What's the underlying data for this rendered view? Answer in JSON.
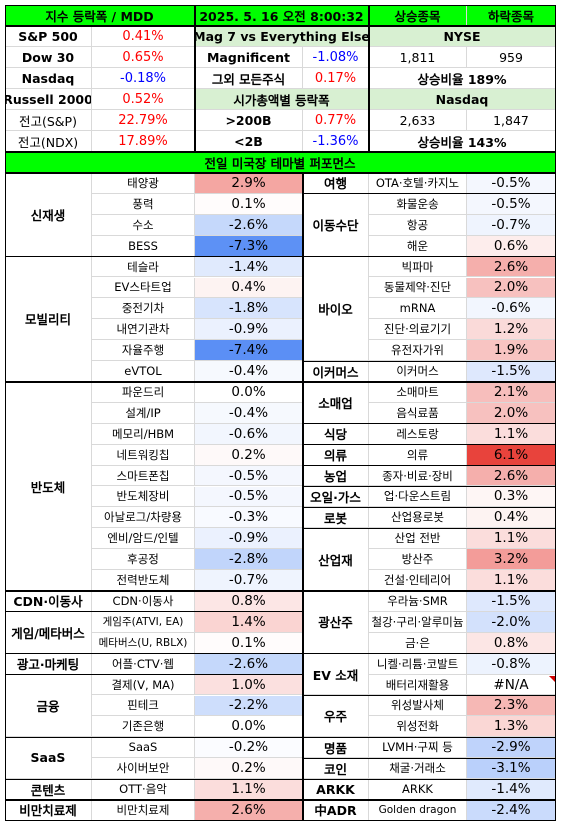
{
  "colors": {
    "header_green": "#00ff00",
    "light_green": "#d8f0d2",
    "grey": "#f2f2f2",
    "red_text": "#ff0000",
    "blue_text": "#0000ff",
    "pos_scale_end": "#e8433c",
    "neg_scale_end": "#5b8ff5"
  },
  "header": {
    "title": "지수 등락폭 / MDD",
    "datetime": "2025. 5. 16 오전 8:00:32",
    "gainers": "상승종목",
    "losers": "하락종목"
  },
  "indices": [
    {
      "name": "S&P 500",
      "value": "0.41%",
      "sign": "pos"
    },
    {
      "name": "Dow 30",
      "value": "0.65%",
      "sign": "pos"
    },
    {
      "name": "Nasdaq",
      "value": "-0.18%",
      "sign": "neg"
    },
    {
      "name": "Russell 2000",
      "value": "0.52%",
      "sign": "pos"
    },
    {
      "name": "전고(S&P)",
      "value": "22.79%",
      "sign": "pos"
    },
    {
      "name": "전고(NDX)",
      "value": "17.89%",
      "sign": "pos"
    }
  ],
  "mag7": {
    "title": "Mag 7 vs Everything Else",
    "rows": [
      {
        "label": "Magnificent",
        "value": "-1.08%",
        "sign": "neg"
      },
      {
        "label": "그외 모든주식",
        "value": "0.17%",
        "sign": "pos"
      }
    ]
  },
  "mcap": {
    "title": "시가총액별 등락폭",
    "rows": [
      {
        "label": ">200B",
        "value": "0.77%",
        "sign": "pos"
      },
      {
        "label": "<2B",
        "value": "-1.36%",
        "sign": "neg"
      }
    ]
  },
  "nyse": {
    "title": "NYSE",
    "up": "1,811",
    "down": "959",
    "ratio": "상승비율 189%"
  },
  "nasdaq": {
    "title": "Nasdaq",
    "up": "2,633",
    "down": "1,847",
    "ratio": "상승비율 143%"
  },
  "theme_title": "전일 미국장 테마별 퍼포먼스",
  "left_groups": [
    {
      "name": "신재생",
      "items": [
        {
          "label": "태양광",
          "value": "2.9%",
          "num": 2.9
        },
        {
          "label": "풍력",
          "value": "0.1%",
          "num": 0.1
        },
        {
          "label": "수소",
          "value": "-2.6%",
          "num": -2.6
        },
        {
          "label": "BESS",
          "value": "-7.3%",
          "num": -7.3
        }
      ]
    },
    {
      "name": "모빌리티",
      "items": [
        {
          "label": "테슬라",
          "value": "-1.4%",
          "num": -1.4
        },
        {
          "label": "EV스타트업",
          "value": "0.4%",
          "num": 0.4
        },
        {
          "label": "중전기차",
          "value": "-1.8%",
          "num": -1.8
        },
        {
          "label": "내연기관차",
          "value": "-0.9%",
          "num": -0.9
        },
        {
          "label": "자율주행",
          "value": "-7.4%",
          "num": -7.4
        },
        {
          "label": "eVTOL",
          "value": "-0.4%",
          "num": -0.4
        }
      ]
    },
    {
      "name": "반도체",
      "items": [
        {
          "label": "파운드리",
          "value": "0.0%",
          "num": 0.0
        },
        {
          "label": "설계/IP",
          "value": "-0.4%",
          "num": -0.4
        },
        {
          "label": "메모리/HBM",
          "value": "-0.6%",
          "num": -0.6
        },
        {
          "label": "네트워킹칩",
          "value": "0.2%",
          "num": 0.2
        },
        {
          "label": "스마트폰칩",
          "value": "-0.5%",
          "num": -0.5
        },
        {
          "label": "반도체장비",
          "value": "-0.5%",
          "num": -0.5
        },
        {
          "label": "아날로그/차량용",
          "value": "-0.3%",
          "num": -0.3
        },
        {
          "label": "엔비/암드/인텔",
          "value": "-0.9%",
          "num": -0.9
        },
        {
          "label": "후공정",
          "value": "-2.8%",
          "num": -2.8
        },
        {
          "label": "전력반도체",
          "value": "-0.7%",
          "num": -0.7
        }
      ]
    },
    {
      "name": "CDN·이동사",
      "items": [
        {
          "label": "CDN·이동사",
          "value": "0.8%",
          "num": 0.8
        }
      ]
    },
    {
      "name": "게임/메타버스",
      "items": [
        {
          "label": "게임주(ATVI, EA)",
          "value": "1.4%",
          "num": 1.4
        },
        {
          "label": "메타버스(U, RBLX)",
          "value": "0.1%",
          "num": 0.1
        }
      ]
    },
    {
      "name": "광고·마케팅",
      "items": [
        {
          "label": "어플·CTV·웹",
          "value": "-2.6%",
          "num": -2.6
        }
      ]
    },
    {
      "name": "금융",
      "items": [
        {
          "label": "결제(V, MA)",
          "value": "1.0%",
          "num": 1.0
        },
        {
          "label": "핀테크",
          "value": "-2.2%",
          "num": -2.2
        },
        {
          "label": "기존은행",
          "value": "0.0%",
          "num": 0.0
        }
      ]
    },
    {
      "name": "SaaS",
      "items": [
        {
          "label": "SaaS",
          "value": "-0.2%",
          "num": -0.2
        },
        {
          "label": "사이버보안",
          "value": "0.2%",
          "num": 0.2
        }
      ]
    },
    {
      "name": "콘텐츠",
      "items": [
        {
          "label": "OTT·음악",
          "value": "1.1%",
          "num": 1.1
        }
      ]
    },
    {
      "name": "비만치료제",
      "items": [
        {
          "label": "비만치료제",
          "value": "2.6%",
          "num": 2.6
        }
      ]
    }
  ],
  "right_groups": [
    {
      "name": "여행",
      "items": [
        {
          "label": "OTA·호텔·카지노",
          "value": "-0.5%",
          "num": -0.5
        }
      ]
    },
    {
      "name": "이동수단",
      "items": [
        {
          "label": "화물운송",
          "value": "-0.5%",
          "num": -0.5
        },
        {
          "label": "항공",
          "value": "-0.7%",
          "num": -0.7
        },
        {
          "label": "해운",
          "value": "0.6%",
          "num": 0.6
        }
      ]
    },
    {
      "name": "바이오",
      "items": [
        {
          "label": "빅파마",
          "value": "2.6%",
          "num": 2.6
        },
        {
          "label": "동물제약·진단",
          "value": "2.0%",
          "num": 2.0
        },
        {
          "label": "mRNA",
          "value": "-0.6%",
          "num": -0.6
        },
        {
          "label": "진단·의료기기",
          "value": "1.2%",
          "num": 1.2
        },
        {
          "label": "유전자가위",
          "value": "1.9%",
          "num": 1.9
        }
      ]
    },
    {
      "name": "이커머스",
      "items": [
        {
          "label": "이커머스",
          "value": "-1.5%",
          "num": -1.5
        }
      ]
    },
    {
      "name": "소매업",
      "items": [
        {
          "label": "소매마트",
          "value": "2.1%",
          "num": 2.1
        },
        {
          "label": "음식료품",
          "value": "2.0%",
          "num": 2.0
        }
      ]
    },
    {
      "name": "식당",
      "items": [
        {
          "label": "레스토랑",
          "value": "1.1%",
          "num": 1.1
        }
      ]
    },
    {
      "name": "의류",
      "items": [
        {
          "label": "의류",
          "value": "6.1%",
          "num": 6.1
        }
      ]
    },
    {
      "name": "농업",
      "items": [
        {
          "label": "종자·비료·장비",
          "value": "2.6%",
          "num": 2.6
        }
      ]
    },
    {
      "name": "오일·가스",
      "items": [
        {
          "label": "업·다운스트림",
          "value": "0.3%",
          "num": 0.3
        }
      ]
    },
    {
      "name": "로봇",
      "items": [
        {
          "label": "산업용로봇",
          "value": "0.4%",
          "num": 0.4
        }
      ]
    },
    {
      "name": "산업재",
      "items": [
        {
          "label": "산업 전반",
          "value": "1.1%",
          "num": 1.1
        },
        {
          "label": "방산주",
          "value": "3.2%",
          "num": 3.2
        },
        {
          "label": "건설·인테리어",
          "value": "1.1%",
          "num": 1.1
        }
      ]
    },
    {
      "name": "광산주",
      "items": [
        {
          "label": "우라늄·SMR",
          "value": "-1.5%",
          "num": -1.5
        },
        {
          "label": "철강·구리·알루미늄",
          "value": "-2.0%",
          "num": -2.0
        },
        {
          "label": "금·은",
          "value": "0.8%",
          "num": 0.8
        }
      ]
    },
    {
      "name": "EV 소재",
      "items": [
        {
          "label": "니켈·리튬·코발트",
          "value": "-0.8%",
          "num": -0.8
        },
        {
          "label": "배터리재활용",
          "value": "#N/A",
          "num": null
        }
      ]
    },
    {
      "name": "우주",
      "items": [
        {
          "label": "위성발사체",
          "value": "2.3%",
          "num": 2.3
        },
        {
          "label": "위성전화",
          "value": "1.3%",
          "num": 1.3
        }
      ]
    },
    {
      "name": "명품",
      "items": [
        {
          "label": "LVMH·구찌 등",
          "value": "-2.9%",
          "num": -2.9
        }
      ]
    },
    {
      "name": "코인",
      "items": [
        {
          "label": "채굴·거래소",
          "value": "-3.1%",
          "num": -3.1
        }
      ]
    },
    {
      "name": "ARKK",
      "items": [
        {
          "label": "ARKK",
          "value": "-1.4%",
          "num": -1.4
        }
      ]
    },
    {
      "name": "中ADR",
      "items": [
        {
          "label": "Golden dragon",
          "value": "-2.4%",
          "num": -2.4
        }
      ]
    }
  ]
}
